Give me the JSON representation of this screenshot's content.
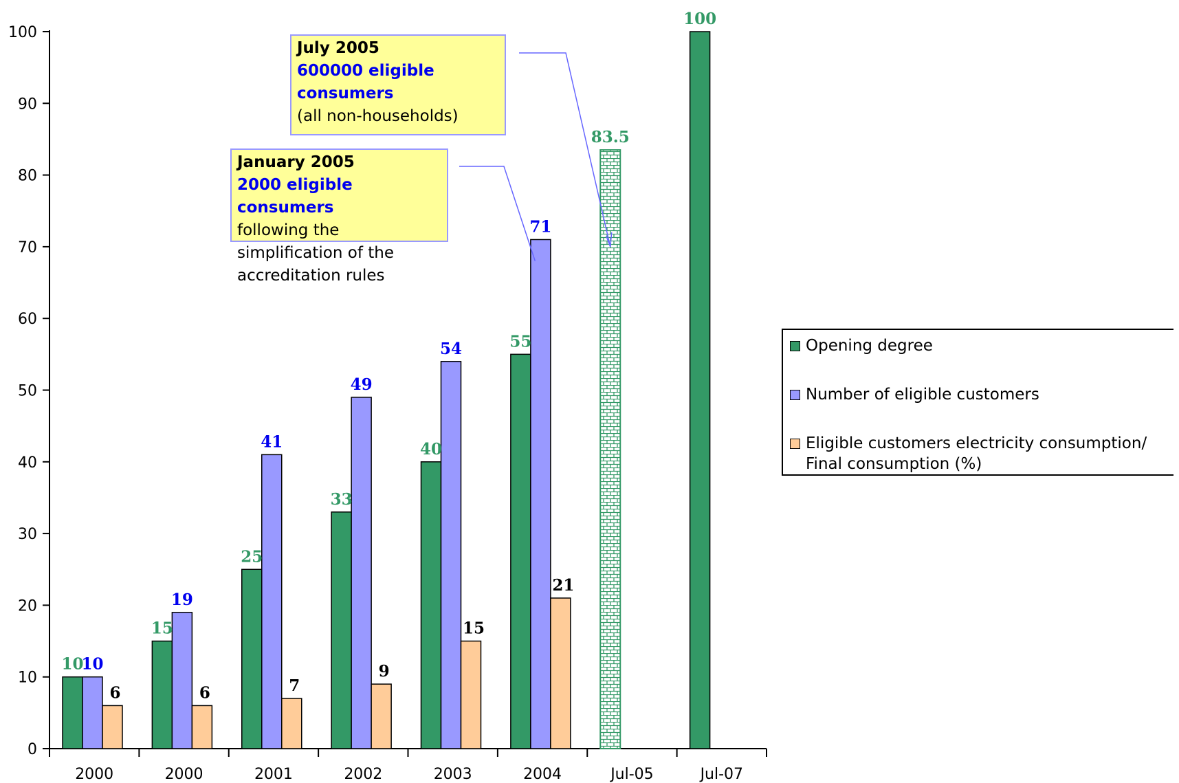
{
  "chart_data": {
    "type": "bar",
    "categories": [
      "2000",
      "2000",
      "2001",
      "2002",
      "2003",
      "2004",
      "Jul-05",
      "Jul-07"
    ],
    "ylim": [
      0,
      100
    ],
    "yticks": [
      0,
      10,
      20,
      30,
      40,
      50,
      60,
      70,
      80,
      90,
      100
    ],
    "grid": false,
    "legend_position": "right",
    "series": [
      {
        "name": "Opening degree",
        "color": "#339966",
        "label_color": "#339966",
        "values": [
          10,
          15,
          25,
          33,
          40,
          55,
          83.5,
          100
        ],
        "labels": [
          "10",
          "15",
          "25",
          "33",
          "40",
          "55",
          "83.5",
          "100"
        ],
        "patterned": [
          false,
          false,
          false,
          false,
          false,
          false,
          true,
          false
        ]
      },
      {
        "name": "Number of eligible customers",
        "color": "#9999ff",
        "label_color": "#0000ee",
        "values": [
          10,
          19,
          41,
          49,
          54,
          71,
          null,
          null
        ],
        "labels": [
          "10",
          "19",
          "41",
          "49",
          "54",
          "71",
          "",
          ""
        ]
      },
      {
        "name": "Eligible customers electricity consumption/ Final consumption (%)",
        "color": "#ffcc99",
        "label_color": "#000000",
        "values": [
          6,
          6,
          7,
          9,
          15,
          21,
          null,
          null
        ],
        "labels": [
          "6",
          "6",
          "7",
          "9",
          "15",
          "21",
          "",
          ""
        ]
      }
    ],
    "annotations": [
      {
        "title": "July 2005",
        "highlight": "600000 eligible consumers",
        "note": "(all non-households)"
      },
      {
        "title": "January  2005",
        "highlight": "2000 eligible consumers",
        "note": "following the simplification of the accreditation rules"
      }
    ]
  }
}
